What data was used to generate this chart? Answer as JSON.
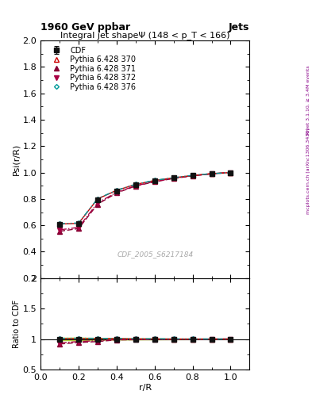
{
  "title_top": "1960 GeV ppbar",
  "title_right": "Jets",
  "main_title": "Integral jet shapeΨ (148 < p_T < 166)",
  "xlabel": "r/R",
  "ylabel_main": "Psi(r/R)",
  "ylabel_ratio": "Ratio to CDF",
  "watermark": "CDF_2005_S6217184",
  "right_label_top": "Rivet 3.1.10, ≥ 3.4M events",
  "right_label_bot": "[arXiv:1306.3436]",
  "mcplots_label": "mcplots.cern.ch",
  "x_data": [
    0.1,
    0.2,
    0.3,
    0.4,
    0.5,
    0.6,
    0.7,
    0.8,
    0.9,
    1.0
  ],
  "cdf_y": [
    0.605,
    0.61,
    0.793,
    0.858,
    0.908,
    0.938,
    0.96,
    0.978,
    0.992,
    1.0
  ],
  "cdf_yerr": [
    0.012,
    0.015,
    0.012,
    0.01,
    0.008,
    0.007,
    0.005,
    0.004,
    0.003,
    0.0
  ],
  "py370_y": [
    0.61,
    0.615,
    0.8,
    0.865,
    0.91,
    0.94,
    0.96,
    0.978,
    0.992,
    1.0
  ],
  "py371_y": [
    0.555,
    0.575,
    0.76,
    0.845,
    0.898,
    0.93,
    0.955,
    0.975,
    0.99,
    1.0
  ],
  "py372_y": [
    0.565,
    0.585,
    0.77,
    0.85,
    0.9,
    0.932,
    0.957,
    0.976,
    0.991,
    1.0
  ],
  "py376_y": [
    0.612,
    0.618,
    0.802,
    0.866,
    0.911,
    0.941,
    0.961,
    0.979,
    0.992,
    1.0
  ],
  "cdf_color": "#111111",
  "py370_color": "#cc0000",
  "py371_color": "#880033",
  "py372_color": "#aa0044",
  "py376_color": "#009999",
  "main_ylim": [
    0.2,
    2.0
  ],
  "ratio_ylim": [
    0.5,
    2.0
  ],
  "xlim": [
    0.0,
    1.1
  ],
  "background_color": "#ffffff",
  "ratio_band_color": "#aadd00",
  "ratio_band_alpha": 0.55
}
